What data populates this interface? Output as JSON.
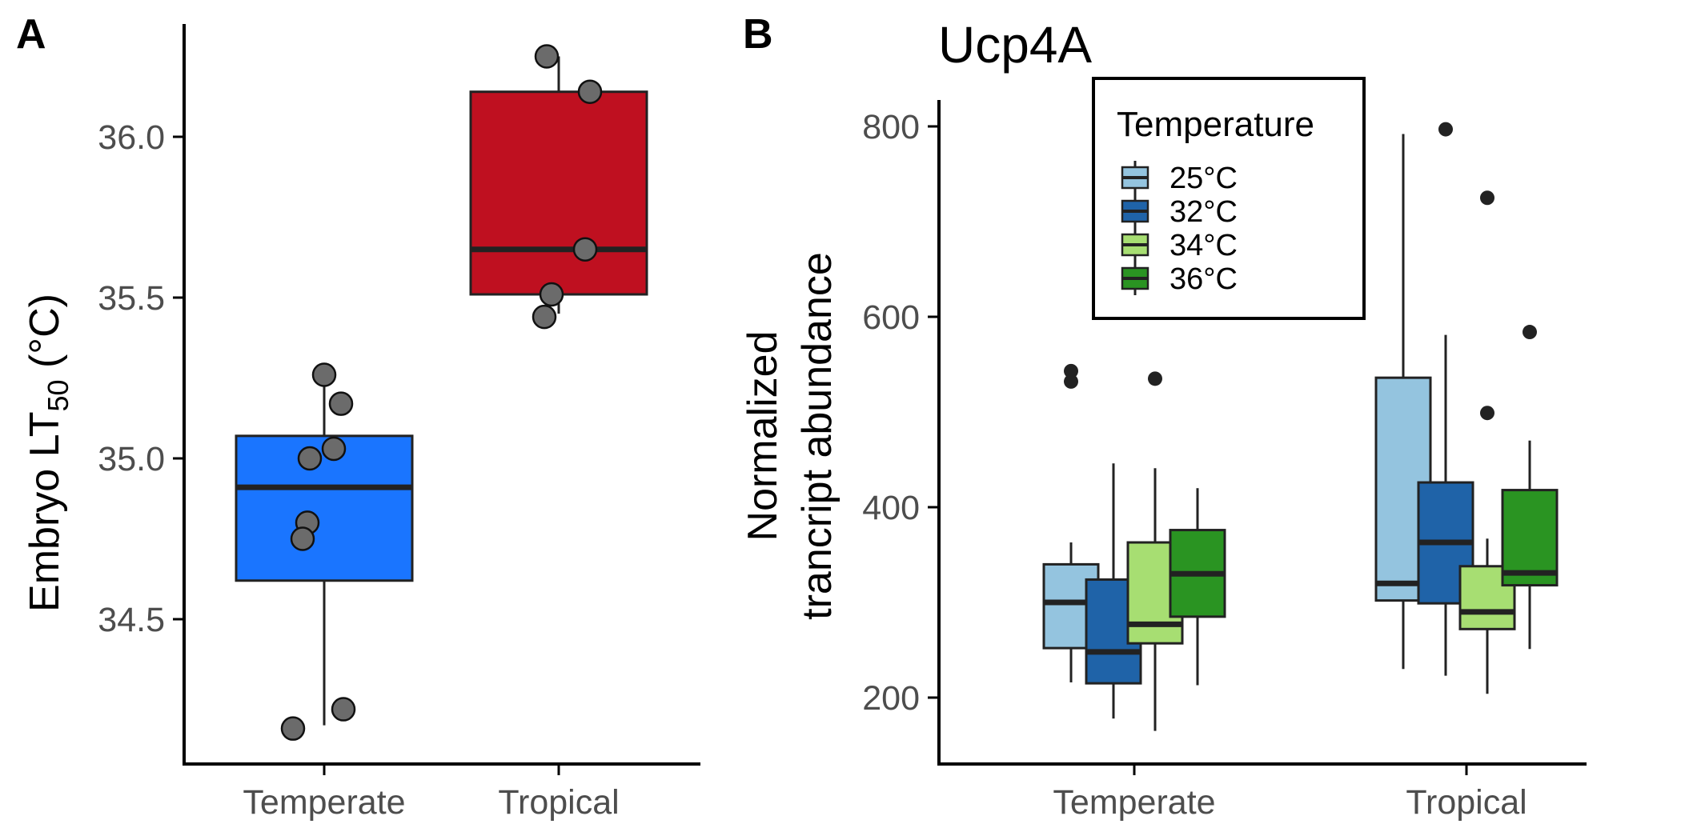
{
  "chart_data": [
    {
      "panel": "A",
      "type": "box",
      "title": "",
      "xlabel": "",
      "ylabel_parts": [
        "Embryo LT",
        "50",
        " (°C)"
      ],
      "ylim": [
        34.05,
        36.35
      ],
      "yticks": [
        34.5,
        35.0,
        35.5,
        36.0
      ],
      "ytick_labels": [
        "34.5",
        "35.0",
        "35.5",
        "36.0"
      ],
      "categories": [
        "Temperate",
        "Tropical"
      ],
      "grid": false,
      "box_colors": [
        "#1a75ff",
        "#bf1020"
      ],
      "point_color": "#6b6b6b",
      "boxes": [
        {
          "category": "Temperate",
          "whisker_low": 34.17,
          "q1": 34.62,
          "median": 34.91,
          "q3": 35.07,
          "whisker_high": 35.26
        },
        {
          "category": "Tropical",
          "whisker_low": 35.45,
          "q1": 35.51,
          "median": 35.65,
          "q3": 36.14,
          "whisker_high": 36.25
        }
      ],
      "points": [
        {
          "category": "Temperate",
          "values": [
            35.26,
            35.17,
            35.03,
            35.0,
            34.8,
            34.75,
            34.22,
            34.16
          ],
          "jitter": [
            0.0,
            0.07,
            0.04,
            -0.06,
            -0.07,
            -0.09,
            0.08,
            -0.13
          ]
        },
        {
          "category": "Tropical",
          "values": [
            36.25,
            36.14,
            35.65,
            35.51,
            35.44
          ],
          "jitter": [
            -0.05,
            0.13,
            0.11,
            -0.03,
            -0.06
          ]
        }
      ]
    },
    {
      "panel": "B",
      "type": "box",
      "title": "Ucp4A",
      "xlabel": "",
      "ylabel_lines": [
        "Normalized",
        "trancript abundance"
      ],
      "ylim": [
        130,
        830
      ],
      "yticks": [
        200,
        400,
        600,
        800
      ],
      "ytick_labels": [
        "200",
        "400",
        "600",
        "800"
      ],
      "categories": [
        "Temperate",
        "Tropical"
      ],
      "grid": false,
      "legend": {
        "title": "Temperature",
        "placement": "top-center",
        "entries": [
          "25°C",
          "32°C",
          "34°C",
          "36°C"
        ],
        "colors": [
          "#94c4df",
          "#1f63a8",
          "#a7de72",
          "#2a9422"
        ]
      },
      "series": [
        {
          "name": "25°C",
          "boxes": [
            {
              "category": "Temperate",
              "whisker_low": 216,
              "q1": 252,
              "median": 300,
              "q3": 340,
              "whisker_high": 363,
              "outliers": [
                543,
                532
              ]
            },
            {
              "category": "Tropical",
              "whisker_low": 230,
              "q1": 302,
              "median": 320,
              "q3": 536,
              "whisker_high": 792,
              "outliers": []
            }
          ]
        },
        {
          "name": "32°C",
          "boxes": [
            {
              "category": "Temperate",
              "whisker_low": 178,
              "q1": 215,
              "median": 248,
              "q3": 324,
              "whisker_high": 446,
              "outliers": []
            },
            {
              "category": "Tropical",
              "whisker_low": 223,
              "q1": 299,
              "median": 363,
              "q3": 426,
              "whisker_high": 581,
              "outliers": [
                797
              ]
            }
          ]
        },
        {
          "name": "34°C",
          "boxes": [
            {
              "category": "Temperate",
              "whisker_low": 165,
              "q1": 257,
              "median": 277,
              "q3": 363,
              "whisker_high": 441,
              "outliers": [
                535
              ]
            },
            {
              "category": "Tropical",
              "whisker_low": 204,
              "q1": 272,
              "median": 290,
              "q3": 338,
              "whisker_high": 367,
              "outliers": [
                725,
                499
              ]
            }
          ]
        },
        {
          "name": "36°C",
          "boxes": [
            {
              "category": "Temperate",
              "whisker_low": 213,
              "q1": 285,
              "median": 330,
              "q3": 376,
              "whisker_high": 420,
              "outliers": []
            },
            {
              "category": "Tropical",
              "whisker_low": 251,
              "q1": 318,
              "median": 331,
              "q3": 418,
              "whisker_high": 470,
              "outliers": [
                584
              ]
            }
          ]
        }
      ]
    }
  ]
}
